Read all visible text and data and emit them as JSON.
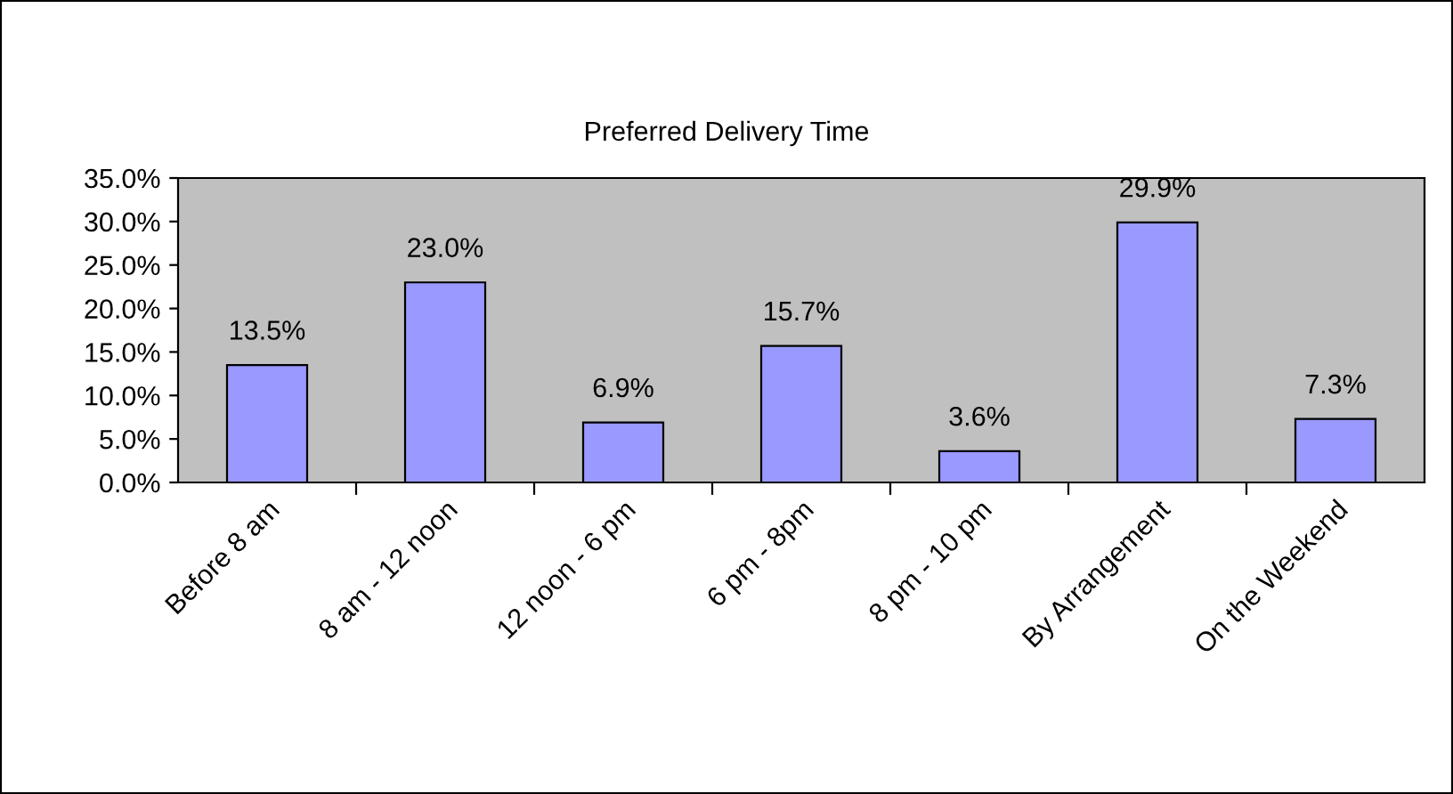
{
  "chart_data": {
    "type": "bar",
    "title": "Preferred Delivery Time",
    "categories": [
      "Before 8 am",
      "8 am - 12 noon",
      "12 noon - 6 pm",
      "6 pm - 8pm",
      "8 pm - 10 pm",
      "By Arrangement",
      "On the Weekend"
    ],
    "values": [
      13.5,
      23.0,
      6.9,
      15.7,
      3.6,
      29.9,
      7.3
    ],
    "value_labels": [
      "13.5%",
      "23.0%",
      "6.9%",
      "15.7%",
      "3.6%",
      "29.9%",
      "7.3%"
    ],
    "color": "#9999ff",
    "ylim": [
      0,
      35
    ],
    "yticks": [
      {
        "value": 0,
        "label": "0.0%"
      },
      {
        "value": 5,
        "label": "5.0%"
      },
      {
        "value": 10,
        "label": "10.0%"
      },
      {
        "value": 15,
        "label": "15.0%"
      },
      {
        "value": 20,
        "label": "20.0%"
      },
      {
        "value": 25,
        "label": "25.0%"
      },
      {
        "value": 30,
        "label": "30.0%"
      },
      {
        "value": 35,
        "label": "35.0%"
      }
    ],
    "grid": false,
    "legend": false
  }
}
